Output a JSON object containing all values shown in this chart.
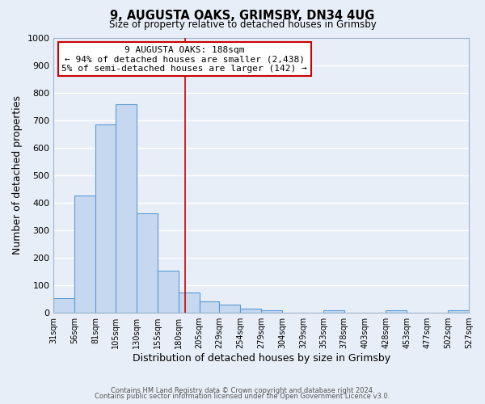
{
  "title": "9, AUGUSTA OAKS, GRIMSBY, DN34 4UG",
  "subtitle": "Size of property relative to detached houses in Grimsby",
  "xlabel": "Distribution of detached houses by size in Grimsby",
  "ylabel": "Number of detached properties",
  "bin_edges": [
    31,
    56,
    81,
    105,
    130,
    155,
    180,
    205,
    229,
    254,
    279,
    304,
    329,
    353,
    378,
    403,
    428,
    453,
    477,
    502,
    527
  ],
  "bar_heights": [
    52,
    425,
    685,
    758,
    362,
    152,
    75,
    40,
    30,
    15,
    10,
    0,
    0,
    8,
    0,
    0,
    10,
    0,
    0,
    8
  ],
  "bar_color": "#c5d8f0",
  "bar_edge_color": "#5b9bd5",
  "vline_x": 188,
  "vline_color": "#cc0000",
  "ylim": [
    0,
    1000
  ],
  "yticks": [
    0,
    100,
    200,
    300,
    400,
    500,
    600,
    700,
    800,
    900,
    1000
  ],
  "xtick_labels": [
    "31sqm",
    "56sqm",
    "81sqm",
    "105sqm",
    "130sqm",
    "155sqm",
    "180sqm",
    "205sqm",
    "229sqm",
    "254sqm",
    "279sqm",
    "304sqm",
    "329sqm",
    "353sqm",
    "378sqm",
    "403sqm",
    "428sqm",
    "453sqm",
    "477sqm",
    "502sqm",
    "527sqm"
  ],
  "annotation_box_text_line1": "9 AUGUSTA OAKS: 188sqm",
  "annotation_box_text_line2": "← 94% of detached houses are smaller (2,438)",
  "annotation_box_text_line3": "5% of semi-detached houses are larger (142) →",
  "annotation_box_facecolor": "white",
  "annotation_box_edge_color": "#cc0000",
  "background_color": "#e8eef8",
  "grid_color": "white",
  "footer_line1": "Contains HM Land Registry data © Crown copyright and database right 2024.",
  "footer_line2": "Contains public sector information licensed under the Open Government Licence v3.0."
}
